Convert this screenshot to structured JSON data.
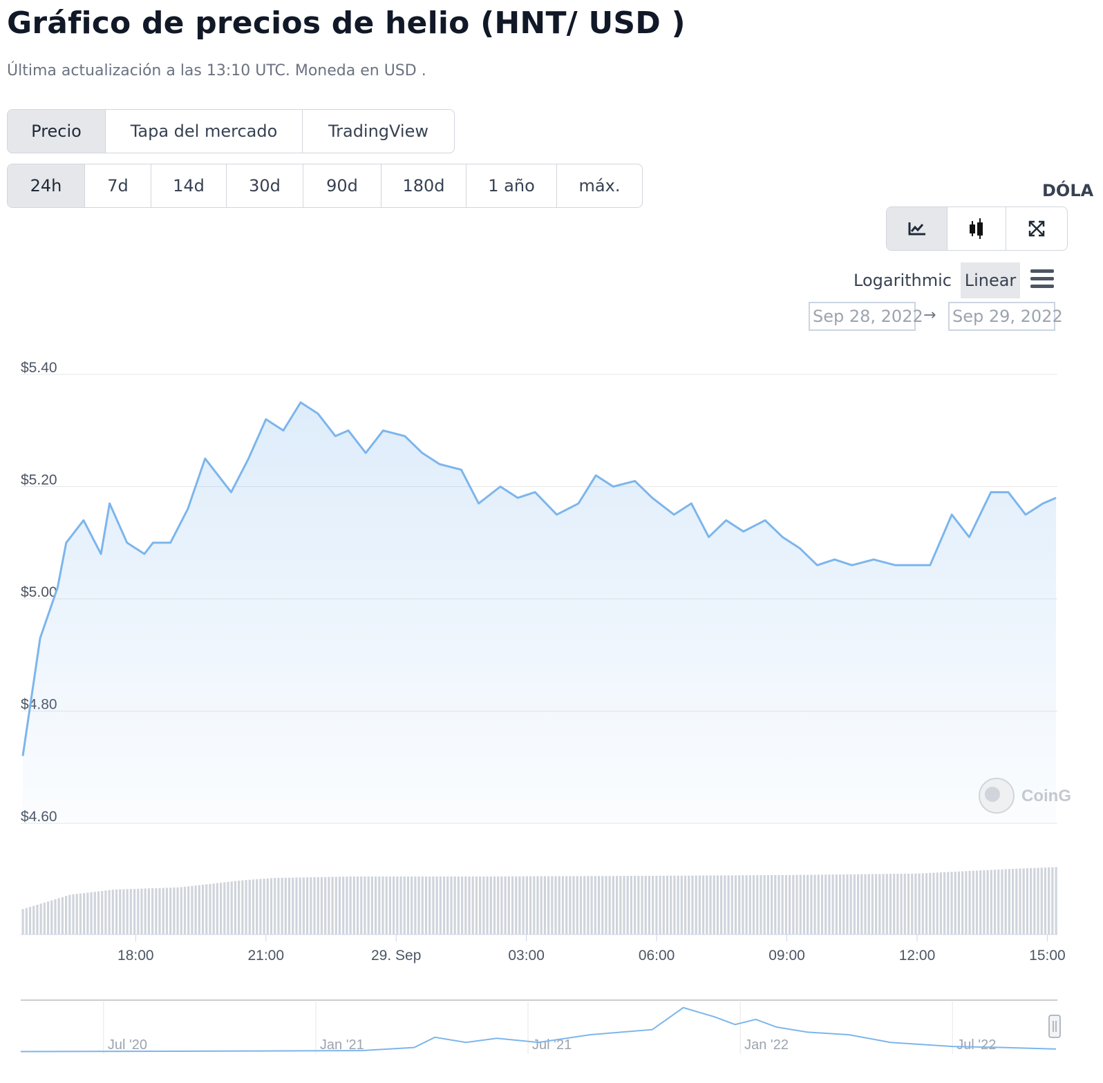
{
  "header": {
    "title": "Gráfico de precios de helio (HNT/ USD )",
    "subtitle": "Última actualización a las 13:10 UTC. Moneda en USD ."
  },
  "chart_type_tabs": [
    {
      "label": "Precio",
      "active": true
    },
    {
      "label": "Tapa del mercado",
      "active": false
    },
    {
      "label": "TradingView",
      "active": false
    }
  ],
  "range_tabs": [
    {
      "label": "24h",
      "active": true
    },
    {
      "label": "7d",
      "active": false
    },
    {
      "label": "14d",
      "active": false
    },
    {
      "label": "30d",
      "active": false
    },
    {
      "label": "90d",
      "active": false
    },
    {
      "label": "180d",
      "active": false
    },
    {
      "label": "1 año",
      "active": false
    },
    {
      "label": "máx.",
      "active": false
    }
  ],
  "currency_label": "DÓLA",
  "view_buttons": [
    {
      "icon": "line-chart-icon",
      "active": true
    },
    {
      "icon": "candlestick-icon",
      "active": false
    },
    {
      "icon": "fullscreen-icon",
      "active": false
    }
  ],
  "scale": {
    "logarithmic": "Logarithmic",
    "linear": "Linear",
    "selected": "linear"
  },
  "date_range": {
    "from": "Sep 28, 2022",
    "arrow": "→",
    "to": "Sep 29, 2022"
  },
  "watermark": "CoinG",
  "colors": {
    "line": "#7cb5ec",
    "volume": "#cfd4dc",
    "navigator_line": "#7cb5ec",
    "grid": "#e6e6e6"
  },
  "chart_data": {
    "type": "line",
    "y_ticks": [
      "$5.40",
      "$5.20",
      "$5.00",
      "$4.80",
      "$4.60"
    ],
    "x_ticks": [
      "18:00",
      "21:00",
      "29. Sep",
      "03:00",
      "06:00",
      "09:00",
      "12:00",
      "15:00"
    ],
    "ylim": [
      4.6,
      5.4
    ],
    "xlim": [
      15.4,
      39.2
    ],
    "series": [
      {
        "x": [
          15.4,
          15.8,
          16.2,
          16.4,
          16.8,
          17.2,
          17.4,
          17.8,
          18.2,
          18.4,
          18.8,
          19.2,
          19.6,
          20.2,
          20.6,
          21.0,
          21.4,
          21.8,
          22.2,
          22.6,
          22.9,
          23.3,
          23.7,
          24.2,
          24.6,
          25.0,
          25.5,
          25.9,
          26.4,
          26.8,
          27.2,
          27.7,
          28.2,
          28.6,
          29.0,
          29.5,
          29.9,
          30.4,
          30.8,
          31.2,
          31.6,
          32.0,
          32.5,
          32.9,
          33.3,
          33.7,
          34.1,
          34.5,
          35.0,
          35.5,
          35.9,
          36.3,
          36.8,
          37.2,
          37.7,
          38.1,
          38.5,
          38.9,
          39.2
        ],
        "y": [
          4.72,
          4.93,
          5.02,
          5.1,
          5.14,
          5.08,
          5.17,
          5.1,
          5.08,
          5.1,
          5.1,
          5.16,
          5.25,
          5.19,
          5.25,
          5.32,
          5.3,
          5.35,
          5.33,
          5.29,
          5.3,
          5.26,
          5.3,
          5.29,
          5.26,
          5.24,
          5.23,
          5.17,
          5.2,
          5.18,
          5.19,
          5.15,
          5.17,
          5.22,
          5.2,
          5.21,
          5.18,
          5.15,
          5.17,
          5.11,
          5.14,
          5.12,
          5.14,
          5.11,
          5.09,
          5.06,
          5.07,
          5.06,
          5.07,
          5.06,
          5.06,
          5.06,
          5.15,
          5.11,
          5.19,
          5.19,
          5.15,
          5.17,
          5.18
        ]
      }
    ],
    "volume": [
      {
        "x": 15.4,
        "v": 0.35
      },
      {
        "x": 16.5,
        "v": 0.55
      },
      {
        "x": 17.5,
        "v": 0.62
      },
      {
        "x": 19.0,
        "v": 0.65
      },
      {
        "x": 20.5,
        "v": 0.75
      },
      {
        "x": 21.2,
        "v": 0.78
      },
      {
        "x": 23.0,
        "v": 0.8
      },
      {
        "x": 26.0,
        "v": 0.8
      },
      {
        "x": 30.0,
        "v": 0.81
      },
      {
        "x": 33.0,
        "v": 0.82
      },
      {
        "x": 36.0,
        "v": 0.84
      },
      {
        "x": 38.0,
        "v": 0.9
      },
      {
        "x": 39.2,
        "v": 0.93
      }
    ],
    "navigator": {
      "x_labels": [
        "Jul '20",
        "Jan '21",
        "Jul '21",
        "Jan '22",
        "Jul '22"
      ],
      "series": [
        {
          "t": 0.0,
          "v": 0.02
        },
        {
          "t": 0.2,
          "v": 0.03
        },
        {
          "t": 0.33,
          "v": 0.04
        },
        {
          "t": 0.38,
          "v": 0.1
        },
        {
          "t": 0.4,
          "v": 0.3
        },
        {
          "t": 0.43,
          "v": 0.2
        },
        {
          "t": 0.46,
          "v": 0.28
        },
        {
          "t": 0.5,
          "v": 0.2
        },
        {
          "t": 0.55,
          "v": 0.35
        },
        {
          "t": 0.58,
          "v": 0.4
        },
        {
          "t": 0.61,
          "v": 0.45
        },
        {
          "t": 0.64,
          "v": 0.88
        },
        {
          "t": 0.67,
          "v": 0.7
        },
        {
          "t": 0.69,
          "v": 0.55
        },
        {
          "t": 0.71,
          "v": 0.65
        },
        {
          "t": 0.73,
          "v": 0.5
        },
        {
          "t": 0.76,
          "v": 0.4
        },
        {
          "t": 0.8,
          "v": 0.35
        },
        {
          "t": 0.84,
          "v": 0.2
        },
        {
          "t": 0.9,
          "v": 0.12
        },
        {
          "t": 0.95,
          "v": 0.1
        },
        {
          "t": 1.0,
          "v": 0.07
        }
      ]
    }
  }
}
